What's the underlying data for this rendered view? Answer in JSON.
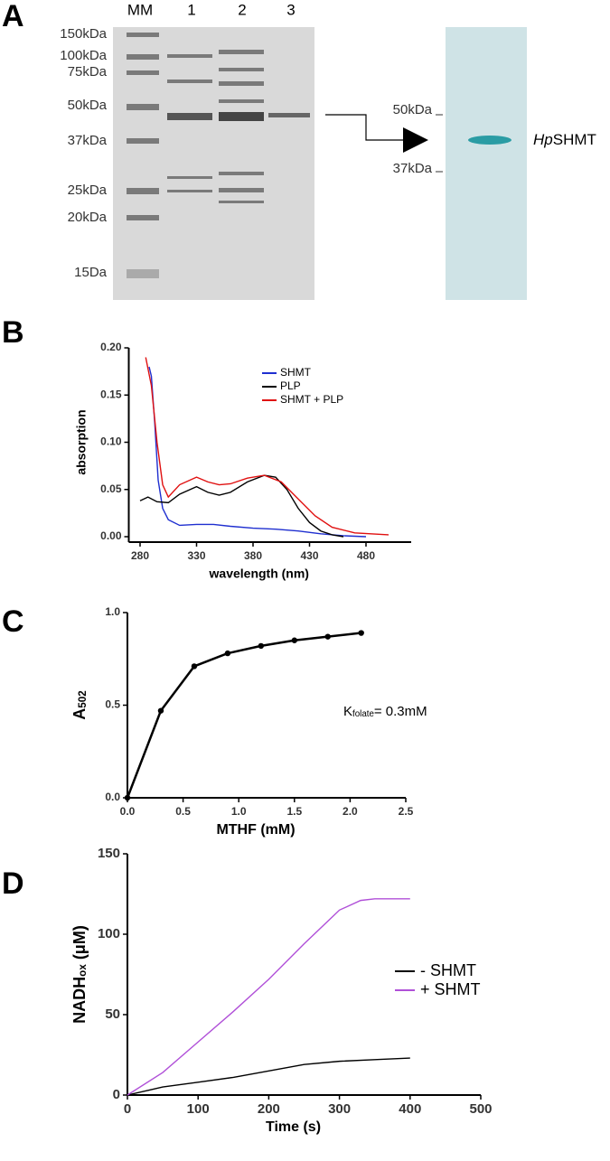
{
  "gel": {
    "panel": "A",
    "lanes": [
      "MM",
      "1",
      "2",
      "3"
    ],
    "markers": [
      "150kDa",
      "100kDa",
      "75kDa",
      "50kDa",
      "37kDa",
      "25kDa",
      "20kDa",
      "15Da"
    ],
    "purified": {
      "markers": [
        "50kDa",
        "37kDa"
      ],
      "label": [
        "Hp",
        "SHMT"
      ]
    }
  },
  "chart_data": [
    {
      "type": "line",
      "panel": "B",
      "xlabel": "wavelength (nm)",
      "ylabel": [
        "absorption"
      ],
      "xlim": [
        270,
        520
      ],
      "xticks": [
        280,
        330,
        380,
        430,
        480
      ],
      "ylim": [
        0,
        0.2
      ],
      "yticks": [
        {
          "value": 0,
          "label": "0.00"
        },
        0.05,
        {
          "value": 0.1,
          "label": "0.10"
        },
        0.15,
        {
          "value": 0.2,
          "label": "0.20"
        }
      ],
      "markers": false,
      "series": [
        {
          "name": "SHMT",
          "color": "#1f2fd0",
          "x": [
            288,
            290,
            293,
            296,
            300,
            305,
            315,
            330,
            345,
            360,
            380,
            400,
            420,
            440,
            460,
            480
          ],
          "values": [
            0.18,
            0.17,
            0.12,
            0.06,
            0.03,
            0.018,
            0.012,
            0.013,
            0.013,
            0.011,
            0.009,
            0.008,
            0.006,
            0.003,
            0.001,
            0
          ]
        },
        {
          "name": "PLP",
          "color": "#000000",
          "x": [
            280,
            287,
            295,
            305,
            315,
            330,
            340,
            350,
            360,
            375,
            390,
            400,
            410,
            420,
            430,
            440,
            450,
            460
          ],
          "values": [
            0.038,
            0.042,
            0.037,
            0.036,
            0.045,
            0.053,
            0.047,
            0.044,
            0.047,
            0.058,
            0.065,
            0.063,
            0.05,
            0.03,
            0.015,
            0.006,
            0.002,
            0
          ]
        },
        {
          "name": "SHMT + PLP",
          "color": "#e01010",
          "x": [
            285,
            290,
            295,
            300,
            305,
            315,
            330,
            340,
            350,
            360,
            375,
            390,
            405,
            420,
            435,
            450,
            470,
            500
          ],
          "values": [
            0.19,
            0.16,
            0.1,
            0.055,
            0.042,
            0.055,
            0.063,
            0.058,
            0.055,
            0.056,
            0.062,
            0.065,
            0.058,
            0.04,
            0.022,
            0.01,
            0.004,
            0.002
          ]
        }
      ]
    },
    {
      "type": "line",
      "panel": "C",
      "xlabel": "MTHF (mM)",
      "ylabel": [
        "A",
        "502"
      ],
      "annotation": [
        "K",
        "folate",
        "= 0.3mM"
      ],
      "xlim": [
        0,
        2.5
      ],
      "xticks": [
        {
          "value": 0,
          "label": "0.0"
        },
        0.5,
        {
          "value": 1,
          "label": "1.0"
        },
        1.5,
        {
          "value": 2,
          "label": "2.0"
        },
        2.5
      ],
      "ylim": [
        0,
        1
      ],
      "yticks": [
        {
          "value": 0,
          "label": "0.0"
        },
        0.5,
        {
          "value": 1,
          "label": "1.0"
        }
      ],
      "markers": true,
      "series": [
        {
          "color": "#000000",
          "x": [
            0,
            0.3,
            0.6,
            0.9,
            1.2,
            1.5,
            1.8,
            2.1
          ],
          "values": [
            0,
            0.47,
            0.71,
            0.78,
            0.82,
            0.85,
            0.87,
            0.89
          ]
        }
      ]
    },
    {
      "type": "line",
      "panel": "D",
      "xlabel": "Time (s)",
      "ylabel": [
        "NADH",
        "ox",
        " (μM)"
      ],
      "xlim": [
        0,
        500
      ],
      "xticks": [
        0,
        100,
        200,
        300,
        400,
        500
      ],
      "ylim": [
        0,
        150
      ],
      "yticks": [
        0,
        50,
        100,
        150
      ],
      "markers": false,
      "series": [
        {
          "name": "-  SHMT",
          "color": "#000000",
          "x": [
            0,
            30,
            50,
            100,
            150,
            200,
            250,
            300,
            350,
            400
          ],
          "values": [
            0,
            3,
            5,
            8,
            11,
            15,
            19,
            21,
            22,
            23
          ]
        },
        {
          "name": "+  SHMT",
          "color": "#b050d8",
          "x": [
            0,
            50,
            100,
            150,
            200,
            250,
            300,
            330,
            350,
            400
          ],
          "values": [
            0,
            14,
            33,
            52,
            72,
            94,
            115,
            121,
            122,
            122
          ]
        }
      ]
    }
  ]
}
